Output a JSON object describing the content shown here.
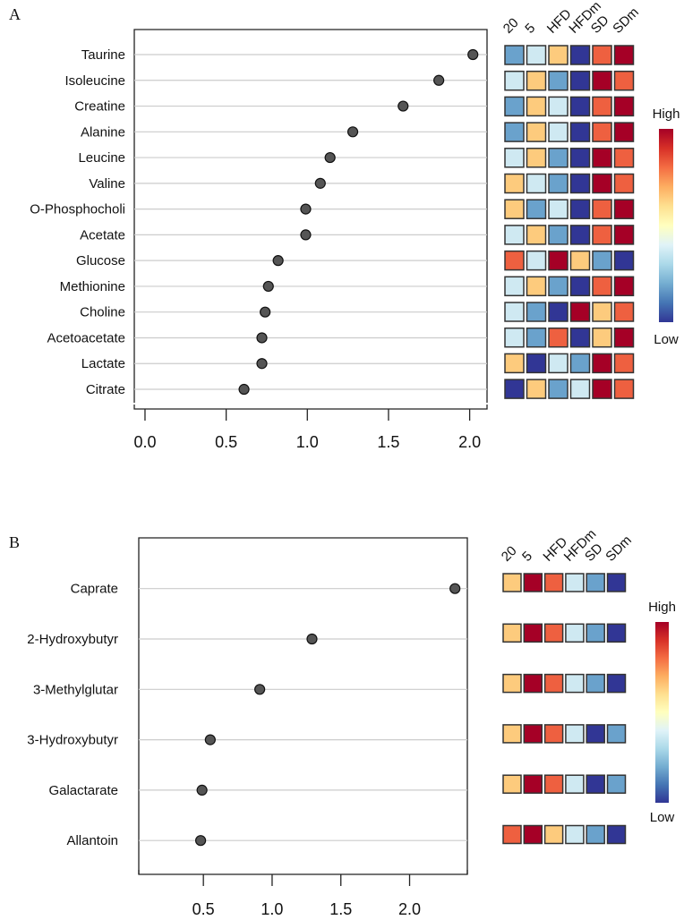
{
  "palette": {
    "levels": [
      "#313695",
      "#6aa2cc",
      "#cfe9f2",
      "#fdcb7d",
      "#ee6040",
      "#a50026"
    ],
    "gradient": [
      "#313695",
      "#4575b4",
      "#74add1",
      "#abd9e9",
      "#e0f3f8",
      "#ffffbf",
      "#fee090",
      "#fdae61",
      "#f46d43",
      "#d73027",
      "#a50026"
    ],
    "dot": "#555555",
    "grid": "#cccccc"
  },
  "chart_data": [
    {
      "panel_label": "A",
      "type": "scatter",
      "xlabel": "",
      "ylabel": "",
      "xlim": [
        -0.066,
        2.107
      ],
      "xticks": [
        0.0,
        0.5,
        1.0,
        1.5,
        2.0
      ],
      "xtick_labels": [
        "0.0",
        "0.5",
        "1.0",
        "1.5",
        "2.0"
      ],
      "grid": "horizontal",
      "categories": [
        "Taurine",
        "Isoleucine",
        "Creatine",
        "Alanine",
        "Leucine",
        "Valine",
        "O-Phosphocholi",
        "Acetate",
        "Glucose",
        "Methionine",
        "Choline",
        "Acetoacetate",
        "Lactate",
        "Citrate"
      ],
      "values": [
        2.02,
        1.81,
        1.59,
        1.28,
        1.14,
        1.08,
        0.99,
        0.99,
        0.82,
        0.76,
        0.74,
        0.72,
        0.72,
        0.61
      ],
      "heatmap": {
        "columns": [
          "20",
          "5",
          "HFD",
          "HFDm",
          "SD",
          "SDm"
        ],
        "levels_low_to_high": 6,
        "rows": [
          [
            2,
            3,
            4,
            1,
            5,
            6
          ],
          [
            3,
            4,
            2,
            1,
            6,
            5
          ],
          [
            2,
            4,
            3,
            1,
            5,
            6
          ],
          [
            2,
            4,
            3,
            1,
            5,
            6
          ],
          [
            3,
            4,
            2,
            1,
            6,
            5
          ],
          [
            4,
            3,
            2,
            1,
            6,
            5
          ],
          [
            4,
            2,
            3,
            1,
            5,
            6
          ],
          [
            3,
            4,
            2,
            1,
            5,
            6
          ],
          [
            5,
            3,
            6,
            4,
            2,
            1
          ],
          [
            3,
            4,
            2,
            1,
            5,
            6
          ],
          [
            3,
            2,
            1,
            6,
            4,
            5
          ],
          [
            3,
            2,
            5,
            1,
            4,
            6
          ],
          [
            4,
            1,
            3,
            2,
            6,
            5
          ],
          [
            1,
            4,
            2,
            3,
            6,
            5
          ]
        ],
        "legend_high": "High",
        "legend_low": "Low"
      }
    },
    {
      "panel_label": "B",
      "type": "scatter",
      "xlabel": "",
      "ylabel": "",
      "xlim": [
        0.03,
        2.42
      ],
      "xticks": [
        0.5,
        1.0,
        1.5,
        2.0
      ],
      "xtick_labels": [
        "0.5",
        "1.0",
        "1.5",
        "2.0"
      ],
      "grid": "horizontal",
      "categories": [
        "Caprate",
        "2-Hydroxybutyr",
        "3-Methylglutar",
        "3-Hydroxybutyr",
        "Galactarate",
        "Allantoin"
      ],
      "values": [
        2.33,
        1.29,
        0.91,
        0.55,
        0.49,
        0.48
      ],
      "heatmap": {
        "columns": [
          "20",
          "5",
          "HFD",
          "HFDm",
          "SD",
          "SDm"
        ],
        "levels_low_to_high": 6,
        "rows": [
          [
            4,
            6,
            5,
            3,
            2,
            1
          ],
          [
            4,
            6,
            5,
            3,
            2,
            1
          ],
          [
            4,
            6,
            5,
            3,
            2,
            1
          ],
          [
            4,
            6,
            5,
            3,
            1,
            2
          ],
          [
            4,
            6,
            5,
            3,
            1,
            2
          ],
          [
            5,
            6,
            4,
            3,
            2,
            1
          ]
        ],
        "legend_high": "High",
        "legend_low": "Low"
      }
    }
  ]
}
